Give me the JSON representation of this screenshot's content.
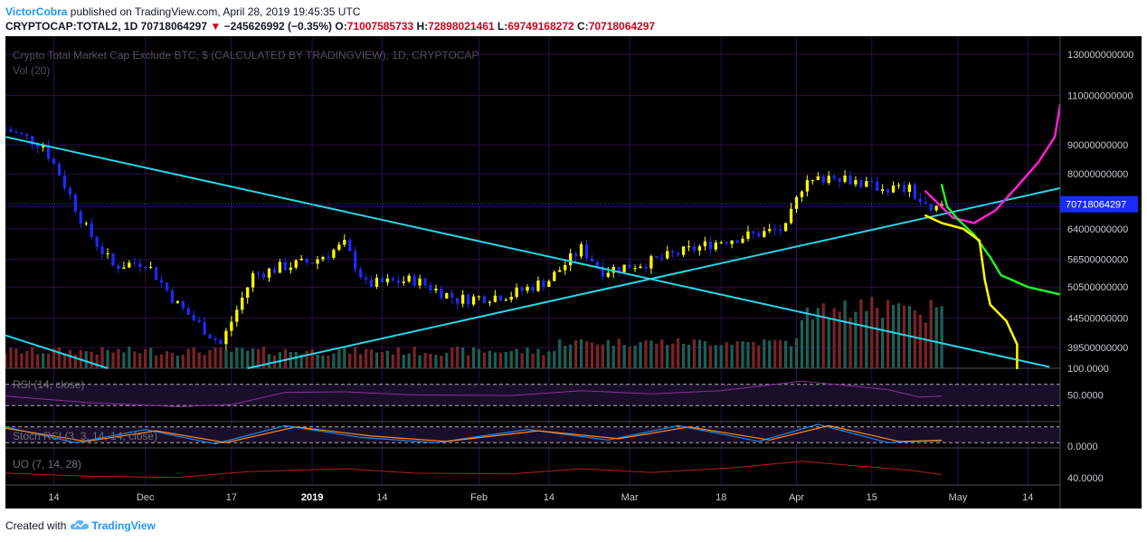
{
  "header": {
    "author": "VictorCobra",
    "published_text": " published on TradingView.com, April 28, 2019 19:45:35 UTC",
    "symbol": "CRYPTOCAP:TOTAL2, 1D",
    "price": "70718064297",
    "change_arrow": "▼",
    "change": "−245626992 (−0.35%)",
    "o_label": "O:",
    "o_value": "71007585733",
    "h_label": "H:",
    "h_value": "72898021461",
    "l_label": "L:",
    "l_value": "69749168272",
    "c_label": "C:",
    "c_value": "70718064297"
  },
  "footer": {
    "created_with": "Created with",
    "brand": "TradingView"
  },
  "colors": {
    "background": "#000000",
    "grid": "#2a0f4a",
    "up_candle": "#ffff00",
    "down_candle": "#1a2bff",
    "volume_up": "#1c5f55",
    "volume_down": "#7a2325",
    "trendline": "#27d4e8",
    "projection_magenta": "#ff1fd2",
    "projection_green": "#22ee22",
    "projection_yellow": "#ffff00",
    "rsi_line": "#8a2f9e",
    "stoch_k": "#1e88e5",
    "stoch_d": "#ff8c1a",
    "uo_line": "#b71c1c",
    "price_label_bg": "#1a2bff"
  },
  "chart_data": {
    "type": "candlestick",
    "title": "Crypto Total Market Cap Exclude BTC, $ (CALCULATED BY TRADINGVIEW), 1D, CRYPTOCAP",
    "volume_label": "Vol (20)",
    "x_tick_labels": [
      "14",
      "Dec",
      "17",
      "2019",
      "14",
      "Feb",
      "14",
      "Mar",
      "18",
      "Apr",
      "15",
      "May",
      "14"
    ],
    "y_scale": "log",
    "y_tick_labels": [
      "130000000000",
      "110000000000",
      "90000000000",
      "80000000000",
      "70000000000",
      "64000000000",
      "56500000000",
      "50500000000",
      "44500000000",
      "39500000000"
    ],
    "y_ticks": [
      130000000000,
      110000000000,
      90000000000,
      80000000000,
      70000000000,
      64000000000,
      56500000000,
      50500000000,
      44500000000,
      39500000000
    ],
    "y_range": [
      36300000000,
      140000000000
    ],
    "last_price_label": "70718064297",
    "last_price": 70718064297,
    "date_range": [
      "2018-11-05",
      "2019-05-20"
    ],
    "dates_shown_candles": [
      "2018-11-05",
      "2019-04-28"
    ],
    "close_series_approx": [
      {
        "date": "2018-11-05",
        "close": 96000000000
      },
      {
        "date": "2018-11-12",
        "close": 90000000000
      },
      {
        "date": "2018-11-15",
        "close": 80000000000
      },
      {
        "date": "2018-11-20",
        "close": 64000000000
      },
      {
        "date": "2018-11-25",
        "close": 55000000000
      },
      {
        "date": "2018-12-01",
        "close": 56000000000
      },
      {
        "date": "2018-12-07",
        "close": 47000000000
      },
      {
        "date": "2018-12-15",
        "close": 40000000000
      },
      {
        "date": "2018-12-21",
        "close": 53000000000
      },
      {
        "date": "2018-12-27",
        "close": 55000000000
      },
      {
        "date": "2019-01-01",
        "close": 56000000000
      },
      {
        "date": "2019-01-07",
        "close": 60000000000
      },
      {
        "date": "2019-01-11",
        "close": 51000000000
      },
      {
        "date": "2019-01-20",
        "close": 52000000000
      },
      {
        "date": "2019-01-28",
        "close": 48000000000
      },
      {
        "date": "2019-02-07",
        "close": 49000000000
      },
      {
        "date": "2019-02-14",
        "close": 52000000000
      },
      {
        "date": "2019-02-20",
        "close": 59000000000
      },
      {
        "date": "2019-02-24",
        "close": 54000000000
      },
      {
        "date": "2019-03-05",
        "close": 56000000000
      },
      {
        "date": "2019-03-18",
        "close": 61000000000
      },
      {
        "date": "2019-03-30",
        "close": 64000000000
      },
      {
        "date": "2019-04-02",
        "close": 76000000000
      },
      {
        "date": "2019-04-08",
        "close": 80000000000
      },
      {
        "date": "2019-04-15",
        "close": 76000000000
      },
      {
        "date": "2019-04-22",
        "close": 75000000000
      },
      {
        "date": "2019-04-26",
        "close": 68000000000
      },
      {
        "date": "2019-04-28",
        "close": 70718064297
      }
    ],
    "trendlines": [
      {
        "name": "descending",
        "from": {
          "date": "2018-11-05",
          "price": 93000000000
        },
        "to": {
          "date": "2019-05-18",
          "price": 36500000000
        }
      },
      {
        "name": "descending-lower",
        "from": {
          "date": "2018-11-05",
          "price": 41500000000
        },
        "to": {
          "date": "2018-11-24",
          "price": 36300000000
        }
      },
      {
        "name": "ascending",
        "from": {
          "date": "2018-12-20",
          "price": 36300000000
        },
        "to": {
          "date": "2019-05-20",
          "price": 75500000000
        }
      }
    ],
    "projections": [
      {
        "color": "magenta",
        "points": [
          {
            "date": "2019-04-25",
            "price": 74500000000
          },
          {
            "date": "2019-04-30",
            "price": 67000000000
          },
          {
            "date": "2019-05-04",
            "price": 65500000000
          },
          {
            "date": "2019-05-08",
            "price": 69000000000
          },
          {
            "date": "2019-05-12",
            "price": 76000000000
          },
          {
            "date": "2019-05-16",
            "price": 84000000000
          },
          {
            "date": "2019-05-19",
            "price": 93000000000
          },
          {
            "date": "2019-05-20",
            "price": 106000000000
          }
        ]
      },
      {
        "color": "green",
        "points": [
          {
            "date": "2019-04-28",
            "price": 76500000000
          },
          {
            "date": "2019-04-29",
            "price": 70000000000
          },
          {
            "date": "2019-05-01",
            "price": 66500000000
          },
          {
            "date": "2019-05-04",
            "price": 62500000000
          },
          {
            "date": "2019-05-07",
            "price": 57000000000
          },
          {
            "date": "2019-05-09",
            "price": 53000000000
          },
          {
            "date": "2019-05-14",
            "price": 50500000000
          },
          {
            "date": "2019-05-20",
            "price": 49000000000
          }
        ]
      },
      {
        "color": "yellow",
        "points": [
          {
            "date": "2019-04-25",
            "price": 67500000000
          },
          {
            "date": "2019-04-28",
            "price": 65500000000
          },
          {
            "date": "2019-05-02",
            "price": 64000000000
          },
          {
            "date": "2019-05-05",
            "price": 61000000000
          },
          {
            "date": "2019-05-06",
            "price": 52000000000
          },
          {
            "date": "2019-05-07",
            "price": 47000000000
          },
          {
            "date": "2019-05-10",
            "price": 44000000000
          },
          {
            "date": "2019-05-12",
            "price": 40000000000
          },
          {
            "date": "2019-05-12",
            "price": 36300000000
          }
        ]
      }
    ],
    "indicators": {
      "rsi": {
        "label": "RSI (14, close)",
        "y_tick_labels": [
          "100.0000",
          "50.0000"
        ],
        "y_ticks": [
          100,
          50
        ],
        "y_range": [
          0,
          100
        ],
        "values": [
          {
            "date": "2018-11-05",
            "value": 48
          },
          {
            "date": "2018-11-20",
            "value": 36
          },
          {
            "date": "2018-12-07",
            "value": 28
          },
          {
            "date": "2018-12-17",
            "value": 32
          },
          {
            "date": "2018-12-27",
            "value": 55
          },
          {
            "date": "2019-01-07",
            "value": 56
          },
          {
            "date": "2019-01-20",
            "value": 50
          },
          {
            "date": "2019-02-07",
            "value": 49
          },
          {
            "date": "2019-02-20",
            "value": 58
          },
          {
            "date": "2019-03-05",
            "value": 52
          },
          {
            "date": "2019-03-18",
            "value": 58
          },
          {
            "date": "2019-04-02",
            "value": 76
          },
          {
            "date": "2019-04-10",
            "value": 68
          },
          {
            "date": "2019-04-18",
            "value": 60
          },
          {
            "date": "2019-04-24",
            "value": 46
          },
          {
            "date": "2019-04-28",
            "value": 48
          }
        ]
      },
      "stoch_rsi": {
        "label": "Stoch RSI (3, 3, 14, 14, close)",
        "y_tick_labels": [
          "0.0000"
        ],
        "y_ticks": [
          0
        ],
        "y_range": [
          0,
          100
        ],
        "k_values": [
          {
            "date": "2018-11-05",
            "value": 80
          },
          {
            "date": "2018-11-18",
            "value": 20
          },
          {
            "date": "2018-12-01",
            "value": 70
          },
          {
            "date": "2018-12-14",
            "value": 15
          },
          {
            "date": "2018-12-27",
            "value": 85
          },
          {
            "date": "2019-01-10",
            "value": 40
          },
          {
            "date": "2019-01-24",
            "value": 20
          },
          {
            "date": "2019-02-10",
            "value": 70
          },
          {
            "date": "2019-02-25",
            "value": 30
          },
          {
            "date": "2019-03-10",
            "value": 85
          },
          {
            "date": "2019-03-25",
            "value": 25
          },
          {
            "date": "2019-04-05",
            "value": 90
          },
          {
            "date": "2019-04-18",
            "value": 20
          },
          {
            "date": "2019-04-28",
            "value": 30
          }
        ],
        "d_values": [
          {
            "date": "2018-11-05",
            "value": 75
          },
          {
            "date": "2018-11-20",
            "value": 25
          },
          {
            "date": "2018-12-03",
            "value": 65
          },
          {
            "date": "2018-12-16",
            "value": 20
          },
          {
            "date": "2018-12-29",
            "value": 80
          },
          {
            "date": "2019-01-12",
            "value": 45
          },
          {
            "date": "2019-01-26",
            "value": 25
          },
          {
            "date": "2019-02-12",
            "value": 65
          },
          {
            "date": "2019-02-27",
            "value": 35
          },
          {
            "date": "2019-03-12",
            "value": 80
          },
          {
            "date": "2019-03-27",
            "value": 30
          },
          {
            "date": "2019-04-07",
            "value": 85
          },
          {
            "date": "2019-04-20",
            "value": 25
          },
          {
            "date": "2019-04-28",
            "value": 28
          }
        ]
      },
      "uo": {
        "label": "UO (7, 14, 28)",
        "y_tick_labels": [
          "40.0000"
        ],
        "y_ticks": [
          40
        ],
        "y_range": [
          30,
          80
        ],
        "values": [
          {
            "date": "2018-11-05",
            "value": 46
          },
          {
            "date": "2018-11-20",
            "value": 42
          },
          {
            "date": "2018-12-07",
            "value": 40
          },
          {
            "date": "2018-12-20",
            "value": 48
          },
          {
            "date": "2019-01-07",
            "value": 52
          },
          {
            "date": "2019-01-20",
            "value": 46
          },
          {
            "date": "2019-02-07",
            "value": 45
          },
          {
            "date": "2019-02-20",
            "value": 52
          },
          {
            "date": "2019-03-05",
            "value": 47
          },
          {
            "date": "2019-03-20",
            "value": 53
          },
          {
            "date": "2019-04-02",
            "value": 62
          },
          {
            "date": "2019-04-12",
            "value": 56
          },
          {
            "date": "2019-04-22",
            "value": 50
          },
          {
            "date": "2019-04-28",
            "value": 44
          }
        ]
      }
    }
  }
}
